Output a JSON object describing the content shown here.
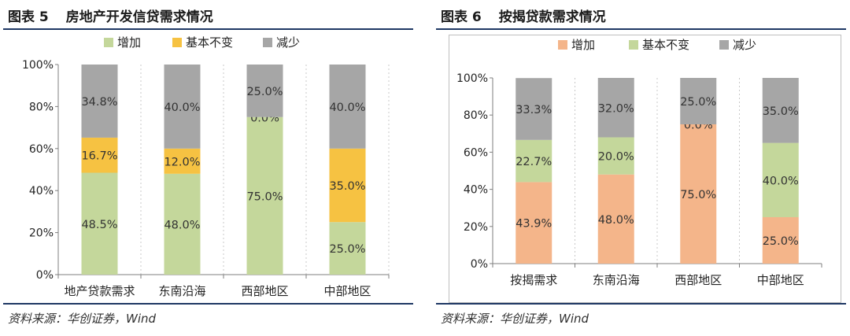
{
  "panels": [
    {
      "figure_no": "图表 5",
      "title": "房地产开发信贷需求情况",
      "source": "资料来源：华创证券，Wind"
    },
    {
      "figure_no": "图表 6",
      "title": "按揭贷款需求情况",
      "source": "资料来源：华创证券，Wind"
    }
  ],
  "chart_data": [
    {
      "type": "bar",
      "stacked": true,
      "title": "房地产开发信贷需求情况",
      "categories": [
        "地产贷款需求",
        "东南沿海",
        "西部地区",
        "中部地区"
      ],
      "series": [
        {
          "name": "增加",
          "color": "#c4d79b",
          "values": [
            48.5,
            48.0,
            75.0,
            25.0
          ]
        },
        {
          "name": "基本不变",
          "color": "#f6c242",
          "values": [
            16.7,
            12.0,
            0.0,
            35.0
          ]
        },
        {
          "name": "减少",
          "color": "#a6a6a6",
          "values": [
            34.8,
            40.0,
            25.0,
            40.0
          ]
        }
      ],
      "value_labels": [
        [
          "48.5%",
          "48.0%",
          "75.0%",
          "25.0%"
        ],
        [
          "16.7%",
          "12.0%",
          "0.0%",
          "35.0%"
        ],
        [
          "34.8%",
          "40.0%",
          "25.0%",
          "40.0%"
        ]
      ],
      "yticks": [
        "0%",
        "20%",
        "40%",
        "60%",
        "80%",
        "100%"
      ],
      "ylim": [
        0,
        100
      ],
      "legend_position": "top",
      "grid": "vertical-dotted"
    },
    {
      "type": "bar",
      "stacked": true,
      "title": "按揭贷款需求情况",
      "categories": [
        "按揭需求",
        "东南沿海",
        "西部地区",
        "中部地区"
      ],
      "series": [
        {
          "name": "增加",
          "color": "#f4b58a",
          "values": [
            43.9,
            48.0,
            75.0,
            25.0
          ]
        },
        {
          "name": "基本不变",
          "color": "#c4d79b",
          "values": [
            22.7,
            20.0,
            0.0,
            40.0
          ]
        },
        {
          "name": "减少",
          "color": "#a6a6a6",
          "values": [
            33.3,
            32.0,
            25.0,
            35.0
          ]
        }
      ],
      "value_labels": [
        [
          "43.9%",
          "48.0%",
          "75.0%",
          "25.0%"
        ],
        [
          "22.7%",
          "20.0%",
          "0.0%",
          "40.0%"
        ],
        [
          "33.3%",
          "32.0%",
          "25.0%",
          "35.0%"
        ]
      ],
      "yticks": [
        "0%",
        "20%",
        "40%",
        "60%",
        "80%",
        "100%"
      ],
      "ylim": [
        0,
        100
      ],
      "legend_position": "top",
      "grid": "vertical-dotted"
    }
  ]
}
